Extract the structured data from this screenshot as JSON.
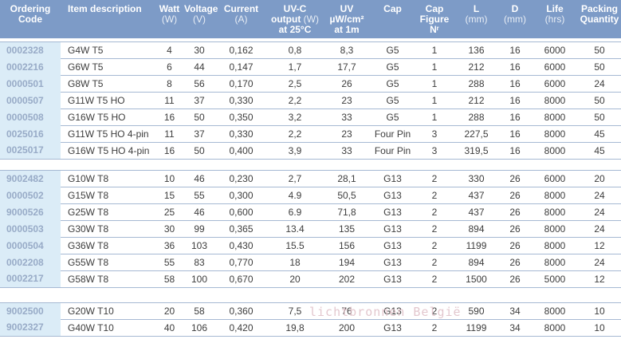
{
  "watermark": {
    "text": "lichtbronnen België",
    "color": "#dfbec6"
  },
  "theme": {
    "header_bg": "#7d9bc7",
    "header_text": "#ffffff",
    "code_cell_bg": "#dbecf7",
    "code_text": "#98abc7",
    "row_border": "#a6b9d3",
    "body_text": "#3d3d3d"
  },
  "table": {
    "columns": [
      {
        "key": "code",
        "label": "Ordering\nCode"
      },
      {
        "key": "description",
        "label": "Item description"
      },
      {
        "key": "watt",
        "label": "Watt\n(W)"
      },
      {
        "key": "voltage",
        "label": "Voltage\n(V)"
      },
      {
        "key": "current",
        "label": "Current\n(A)"
      },
      {
        "key": "uvc_output",
        "label": "UV-C\noutput (W)\nat 25°C"
      },
      {
        "key": "uv_irradiance",
        "label": "UV\nµW/cm²\nat 1m"
      },
      {
        "key": "cap",
        "label": "Cap"
      },
      {
        "key": "cap_figure",
        "label": "Cap\nFigure\nNʳ"
      },
      {
        "key": "length",
        "label": "L\n(mm)"
      },
      {
        "key": "diameter",
        "label": "D\n(mm)"
      },
      {
        "key": "life",
        "label": "Life\n(hrs)"
      },
      {
        "key": "packing",
        "label": "Packing\nQuantity"
      }
    ],
    "groups": [
      {
        "rows": [
          [
            "0002328",
            "G4W T5",
            "4",
            "30",
            "0,162",
            "0,8",
            "8,3",
            "G5",
            "1",
            "136",
            "16",
            "6000",
            "50"
          ],
          [
            "0002216",
            "G6W T5",
            "6",
            "44",
            "0,147",
            "1,7",
            "17,7",
            "G5",
            "1",
            "212",
            "16",
            "6000",
            "50"
          ],
          [
            "0000501",
            "G8W T5",
            "8",
            "56",
            "0,170",
            "2,5",
            "26",
            "G5",
            "1",
            "288",
            "16",
            "6000",
            "24"
          ],
          [
            "0000507",
            "G11W T5 HO",
            "11",
            "37",
            "0,330",
            "2,2",
            "23",
            "G5",
            "1",
            "212",
            "16",
            "8000",
            "50"
          ],
          [
            "0000508",
            "G16W T5 HO",
            "16",
            "50",
            "0,350",
            "3,2",
            "33",
            "G5",
            "1",
            "288",
            "16",
            "8000",
            "50"
          ],
          [
            "0025016",
            "G11W T5 HO 4-pin",
            "11",
            "37",
            "0,330",
            "2,2",
            "23",
            "Four Pin",
            "3",
            "227,5",
            "16",
            "8000",
            "45"
          ],
          [
            "0025017",
            "G16W T5 HO 4-pin",
            "16",
            "50",
            "0,400",
            "3,9",
            "33",
            "Four Pin",
            "3",
            "319,5",
            "16",
            "8000",
            "45"
          ]
        ]
      },
      {
        "rows": [
          [
            "9002482",
            "G10W T8",
            "10",
            "46",
            "0,230",
            "2,7",
            "28,1",
            "G13",
            "2",
            "330",
            "26",
            "6000",
            "20"
          ],
          [
            "0000502",
            "G15W T8",
            "15",
            "55",
            "0,300",
            "4.9",
            "50,5",
            "G13",
            "2",
            "437",
            "26",
            "8000",
            "24"
          ],
          [
            "9000526",
            "G25W T8",
            "25",
            "46",
            "0,600",
            "6.9",
            "71,8",
            "G13",
            "2",
            "437",
            "26",
            "8000",
            "24"
          ],
          [
            "0000503",
            "G30W T8",
            "30",
            "99",
            "0,365",
            "13.4",
            "135",
            "G13",
            "2",
            "894",
            "26",
            "8000",
            "24"
          ],
          [
            "0000504",
            "G36W T8",
            "36",
            "103",
            "0,430",
            "15.5",
            "156",
            "G13",
            "2",
            "1199",
            "26",
            "8000",
            "12"
          ],
          [
            "0002208",
            "G55W T8",
            "55",
            "83",
            "0,770",
            "18",
            "194",
            "G13",
            "2",
            "894",
            "26",
            "8000",
            "24"
          ],
          [
            "0002217",
            "G58W T8",
            "58",
            "100",
            "0,670",
            "20",
            "202",
            "G13",
            "2",
            "1500",
            "26",
            "5000",
            "12"
          ]
        ]
      },
      {
        "rows": [
          [
            "9002500",
            "G20W T10",
            "20",
            "58",
            "0,360",
            "7,5",
            "76",
            "G13",
            "2",
            "590",
            "34",
            "8000",
            "10"
          ],
          [
            "9002327",
            "G40W T10",
            "40",
            "106",
            "0,420",
            "19,8",
            "200",
            "G13",
            "2",
            "1199",
            "34",
            "8000",
            "10"
          ]
        ]
      }
    ]
  }
}
